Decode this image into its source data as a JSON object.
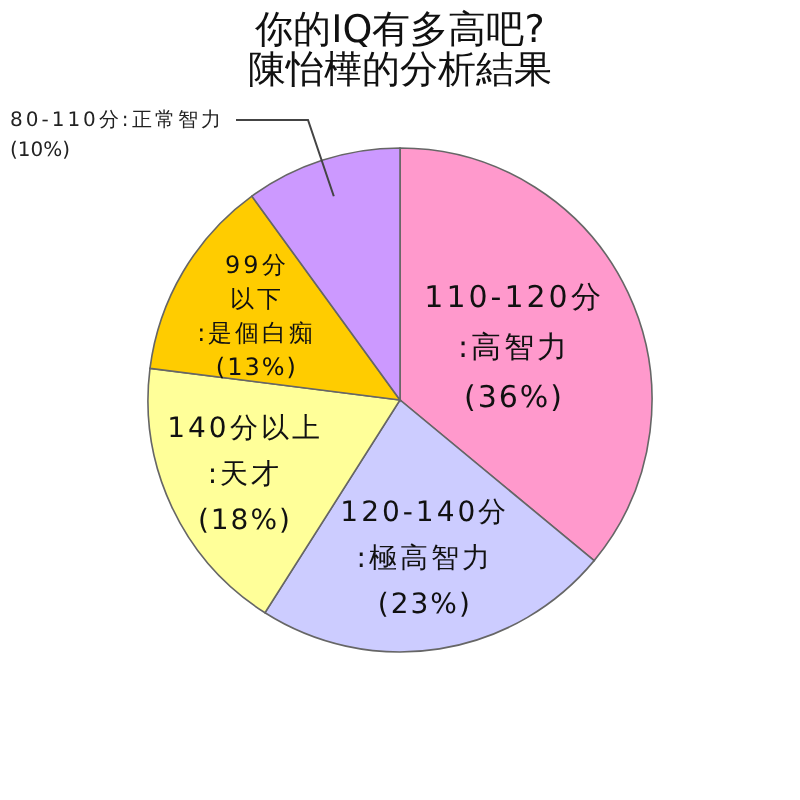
{
  "chart_data": {
    "type": "pie",
    "title": "你的IQ有多高吧?",
    "subtitle": "陳怡樺的分析結果",
    "categories": [
      "110-120分:高智力",
      "120-140分:極高智力",
      "140分以上:天才",
      "99分以下:是個白痴",
      "80-110分:正常智力"
    ],
    "values": [
      36,
      23,
      18,
      13,
      10
    ],
    "colors": [
      "#ff99cc",
      "#ccccff",
      "#ffff99",
      "#ffcc00",
      "#cc99ff"
    ],
    "value_labels": [
      "(36%)",
      "(23%)",
      "(18%)",
      "(13%)",
      "(10%)"
    ]
  }
}
